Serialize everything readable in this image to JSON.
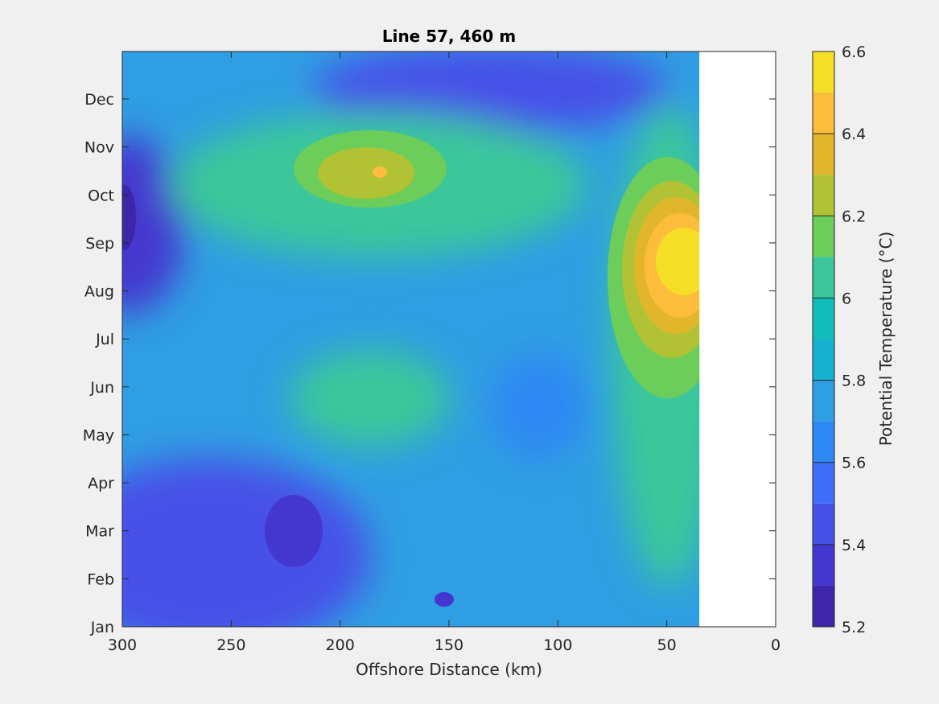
{
  "chart_data": {
    "type": "heatmap",
    "subtype": "filled-contour",
    "title": "Line 57, 460 m",
    "xlabel": "Offshore Distance (km)",
    "ylabel": "",
    "xlim": [
      300,
      0
    ],
    "x_ticks": [
      300,
      250,
      200,
      150,
      100,
      50,
      0
    ],
    "y_ticks": [
      "Jan",
      "Feb",
      "Mar",
      "Apr",
      "May",
      "Jun",
      "Jul",
      "Aug",
      "Sep",
      "Oct",
      "Nov",
      "Dec"
    ],
    "data_extent_km": [
      300,
      35
    ],
    "colorbar": {
      "label": "Potential Temperature (°C)",
      "limits": [
        5.2,
        6.6
      ],
      "levels": [
        5.2,
        5.3,
        5.4,
        5.5,
        5.6,
        5.7,
        5.8,
        5.9,
        6.0,
        6.1,
        6.2,
        6.3,
        6.4,
        6.5,
        6.6
      ],
      "tick_values": [
        5.2,
        5.4,
        5.6,
        5.8,
        6.0,
        6.2,
        6.4,
        6.6
      ],
      "tick_labels": [
        "5.2",
        "5.4",
        "5.6",
        "5.8",
        "6",
        "6.2",
        "6.4",
        "6.6"
      ],
      "colors": [
        "#3e26a8",
        "#4437cf",
        "#4751e8",
        "#3f6ffa",
        "#2f88f4",
        "#2f9ee2",
        "#16b1d1",
        "#12bdb9",
        "#3bc79a",
        "#6ccd5a",
        "#b1c234",
        "#e2b62b",
        "#fdbd3c",
        "#f5de26"
      ]
    },
    "features": [
      {
        "kind": "max",
        "value": 6.6,
        "near_km": 40,
        "month": "Aug-Sep"
      },
      {
        "kind": "max",
        "value": 6.4,
        "near_km": 180,
        "month": "Oct-Nov"
      },
      {
        "kind": "min",
        "value": 5.2,
        "near_km": 220,
        "month": "Mar"
      },
      {
        "kind": "min",
        "value": 5.3,
        "near_km": 300,
        "month": "Sep"
      }
    ]
  }
}
